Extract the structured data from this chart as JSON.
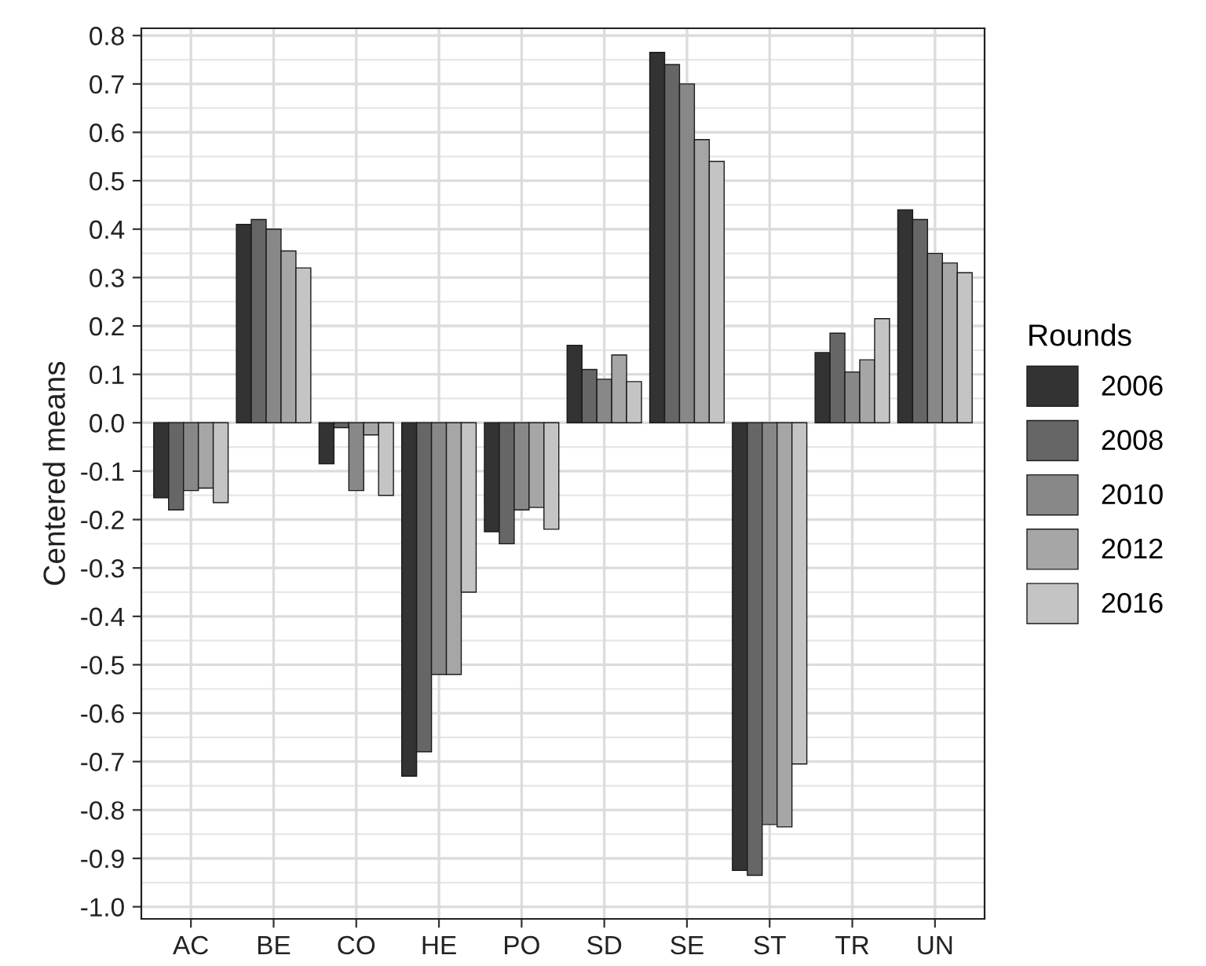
{
  "chart_data": {
    "type": "bar",
    "ylabel": "Centered means",
    "legend_title": "Rounds",
    "categories": [
      "AC",
      "BE",
      "CO",
      "HE",
      "PO",
      "SD",
      "SE",
      "ST",
      "TR",
      "UN"
    ],
    "series": [
      {
        "name": "2006",
        "color": "#333333",
        "values": [
          -0.155,
          0.41,
          -0.085,
          -0.73,
          -0.225,
          0.16,
          0.765,
          -0.925,
          0.145,
          0.44
        ]
      },
      {
        "name": "2008",
        "color": "#666666",
        "values": [
          -0.18,
          0.42,
          -0.01,
          -0.68,
          -0.25,
          0.11,
          0.74,
          -0.935,
          0.185,
          0.42
        ]
      },
      {
        "name": "2010",
        "color": "#888888",
        "values": [
          -0.14,
          0.4,
          -0.14,
          -0.52,
          -0.18,
          0.09,
          0.7,
          -0.83,
          0.105,
          0.35
        ]
      },
      {
        "name": "2012",
        "color": "#a6a6a6",
        "values": [
          -0.135,
          0.355,
          -0.025,
          -0.52,
          -0.175,
          0.14,
          0.585,
          -0.835,
          0.13,
          0.33
        ]
      },
      {
        "name": "2016",
        "color": "#c4c4c4",
        "values": [
          -0.165,
          0.32,
          -0.15,
          -0.35,
          -0.22,
          0.085,
          0.54,
          -0.705,
          0.215,
          0.31
        ]
      }
    ],
    "ylim": [
      -1.025,
      0.815
    ],
    "yticks": [
      {
        "value": 0.8,
        "label": "0.8"
      },
      {
        "value": 0.7,
        "label": "0.7"
      },
      {
        "value": 0.6,
        "label": "0.6"
      },
      {
        "value": 0.5,
        "label": "0.5"
      },
      {
        "value": 0.4,
        "label": "0.4"
      },
      {
        "value": 0.3,
        "label": "0.3"
      },
      {
        "value": 0.2,
        "label": "0.2"
      },
      {
        "value": 0.1,
        "label": "0.1"
      },
      {
        "value": 0,
        "label": "0.0"
      },
      {
        "value": -0.1,
        "label": "-0.1"
      },
      {
        "value": -0.2,
        "label": "-0.2"
      },
      {
        "value": -0.3,
        "label": "-0.3"
      },
      {
        "value": -0.4,
        "label": "-0.4"
      },
      {
        "value": -0.5,
        "label": "-0.5"
      },
      {
        "value": -0.6,
        "label": "-0.6"
      },
      {
        "value": -0.7,
        "label": "-0.7"
      },
      {
        "value": -0.8,
        "label": "-0.8"
      },
      {
        "value": -0.9,
        "label": "-0.9"
      },
      {
        "value": -1.0,
        "label": "-1.0"
      }
    ],
    "grid": true,
    "legend": "right"
  }
}
